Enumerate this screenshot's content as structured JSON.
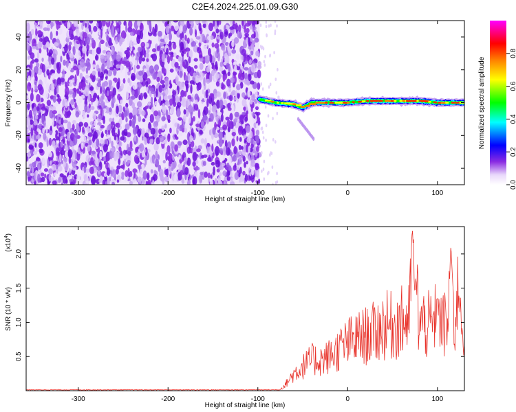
{
  "figure_title": "C2E4.2024.225.01.09.G30",
  "chart_data": [
    {
      "type": "heatmap",
      "title": "C2E4.2024.225.01.09.G30",
      "xlabel": "Height of straight line (km)",
      "ylabel": "Frequency (Hz)",
      "xlim": [
        -358,
        130
      ],
      "ylim": [
        -50,
        50
      ],
      "xticks": [
        -300,
        -200,
        -100,
        0,
        100
      ],
      "yticks": [
        -40,
        -20,
        0,
        20,
        40
      ],
      "colorbar": {
        "label": "Normalized spectral amplitude",
        "range": [
          0.0,
          1.0
        ],
        "ticks": [
          "0.0",
          "0.2",
          "0.4",
          "0.6",
          "0.8"
        ],
        "colormap": [
          "#ffffff",
          "#8a2be2",
          "#0000ff",
          "#00ffff",
          "#00ff00",
          "#ffff00",
          "#ff8000",
          "#ff0000",
          "#ff00ff"
        ]
      },
      "description_values": {
        "noise_region_x": [
          -358,
          -98
        ],
        "signal_start_x": -98,
        "signal_frequency_track": [
          {
            "x": -98,
            "f": 2
          },
          {
            "x": -80,
            "f": 0
          },
          {
            "x": -60,
            "f": -1
          },
          {
            "x": -50,
            "f": -3
          },
          {
            "x": -40,
            "f": 0
          },
          {
            "x": -20,
            "f": 0
          },
          {
            "x": 0,
            "f": 0
          },
          {
            "x": 20,
            "f": 1
          },
          {
            "x": 40,
            "f": 1
          },
          {
            "x": 60,
            "f": 1
          },
          {
            "x": 80,
            "f": 1
          },
          {
            "x": 100,
            "f": 0
          },
          {
            "x": 130,
            "f": 0
          }
        ],
        "streak": {
          "x": [
            -55,
            -38
          ],
          "f": [
            -10,
            -22
          ]
        }
      }
    },
    {
      "type": "line",
      "xlabel": "Height of straight line (km)",
      "ylabel": "SNR (10 * v/v)",
      "y_multiplier": "(x10",
      "y_multiplier_exp": "4",
      "y_multiplier_close": ")",
      "xlim": [
        -358,
        130
      ],
      "ylim": [
        0,
        2.4
      ],
      "xticks": [
        -300,
        -200,
        -100,
        0,
        100
      ],
      "yticks": [
        0.5,
        1.0,
        1.5,
        2.0
      ],
      "ytick_labels": [
        "0.5",
        "1.0",
        "1.5",
        "2.0"
      ],
      "line_color": "#e8322a",
      "series_envelope": [
        {
          "x": -358,
          "y": 0.01
        },
        {
          "x": -100,
          "y": 0.01
        },
        {
          "x": -75,
          "y": 0.02
        },
        {
          "x": -70,
          "y": 0.08
        },
        {
          "x": -60,
          "y": 0.25
        },
        {
          "x": -50,
          "y": 0.35
        },
        {
          "x": -40,
          "y": 0.45
        },
        {
          "x": -30,
          "y": 0.45
        },
        {
          "x": -20,
          "y": 0.5
        },
        {
          "x": -10,
          "y": 0.6
        },
        {
          "x": 0,
          "y": 0.7
        },
        {
          "x": 10,
          "y": 0.75
        },
        {
          "x": 20,
          "y": 0.8
        },
        {
          "x": 30,
          "y": 0.85
        },
        {
          "x": 40,
          "y": 0.95
        },
        {
          "x": 50,
          "y": 0.95
        },
        {
          "x": 60,
          "y": 1.0
        },
        {
          "x": 70,
          "y": 1.05
        },
        {
          "x": 80,
          "y": 1.0
        },
        {
          "x": 90,
          "y": 0.95
        },
        {
          "x": 100,
          "y": 0.95
        },
        {
          "x": 110,
          "y": 0.95
        },
        {
          "x": 120,
          "y": 1.05
        },
        {
          "x": 130,
          "y": 1.0
        }
      ],
      "peaks": [
        {
          "x": 72,
          "y": 2.4
        },
        {
          "x": 115,
          "y": 2.15
        },
        {
          "x": 76,
          "y": 1.7
        },
        {
          "x": 100,
          "y": 1.4
        },
        {
          "x": 124,
          "y": 1.45
        }
      ]
    }
  ]
}
